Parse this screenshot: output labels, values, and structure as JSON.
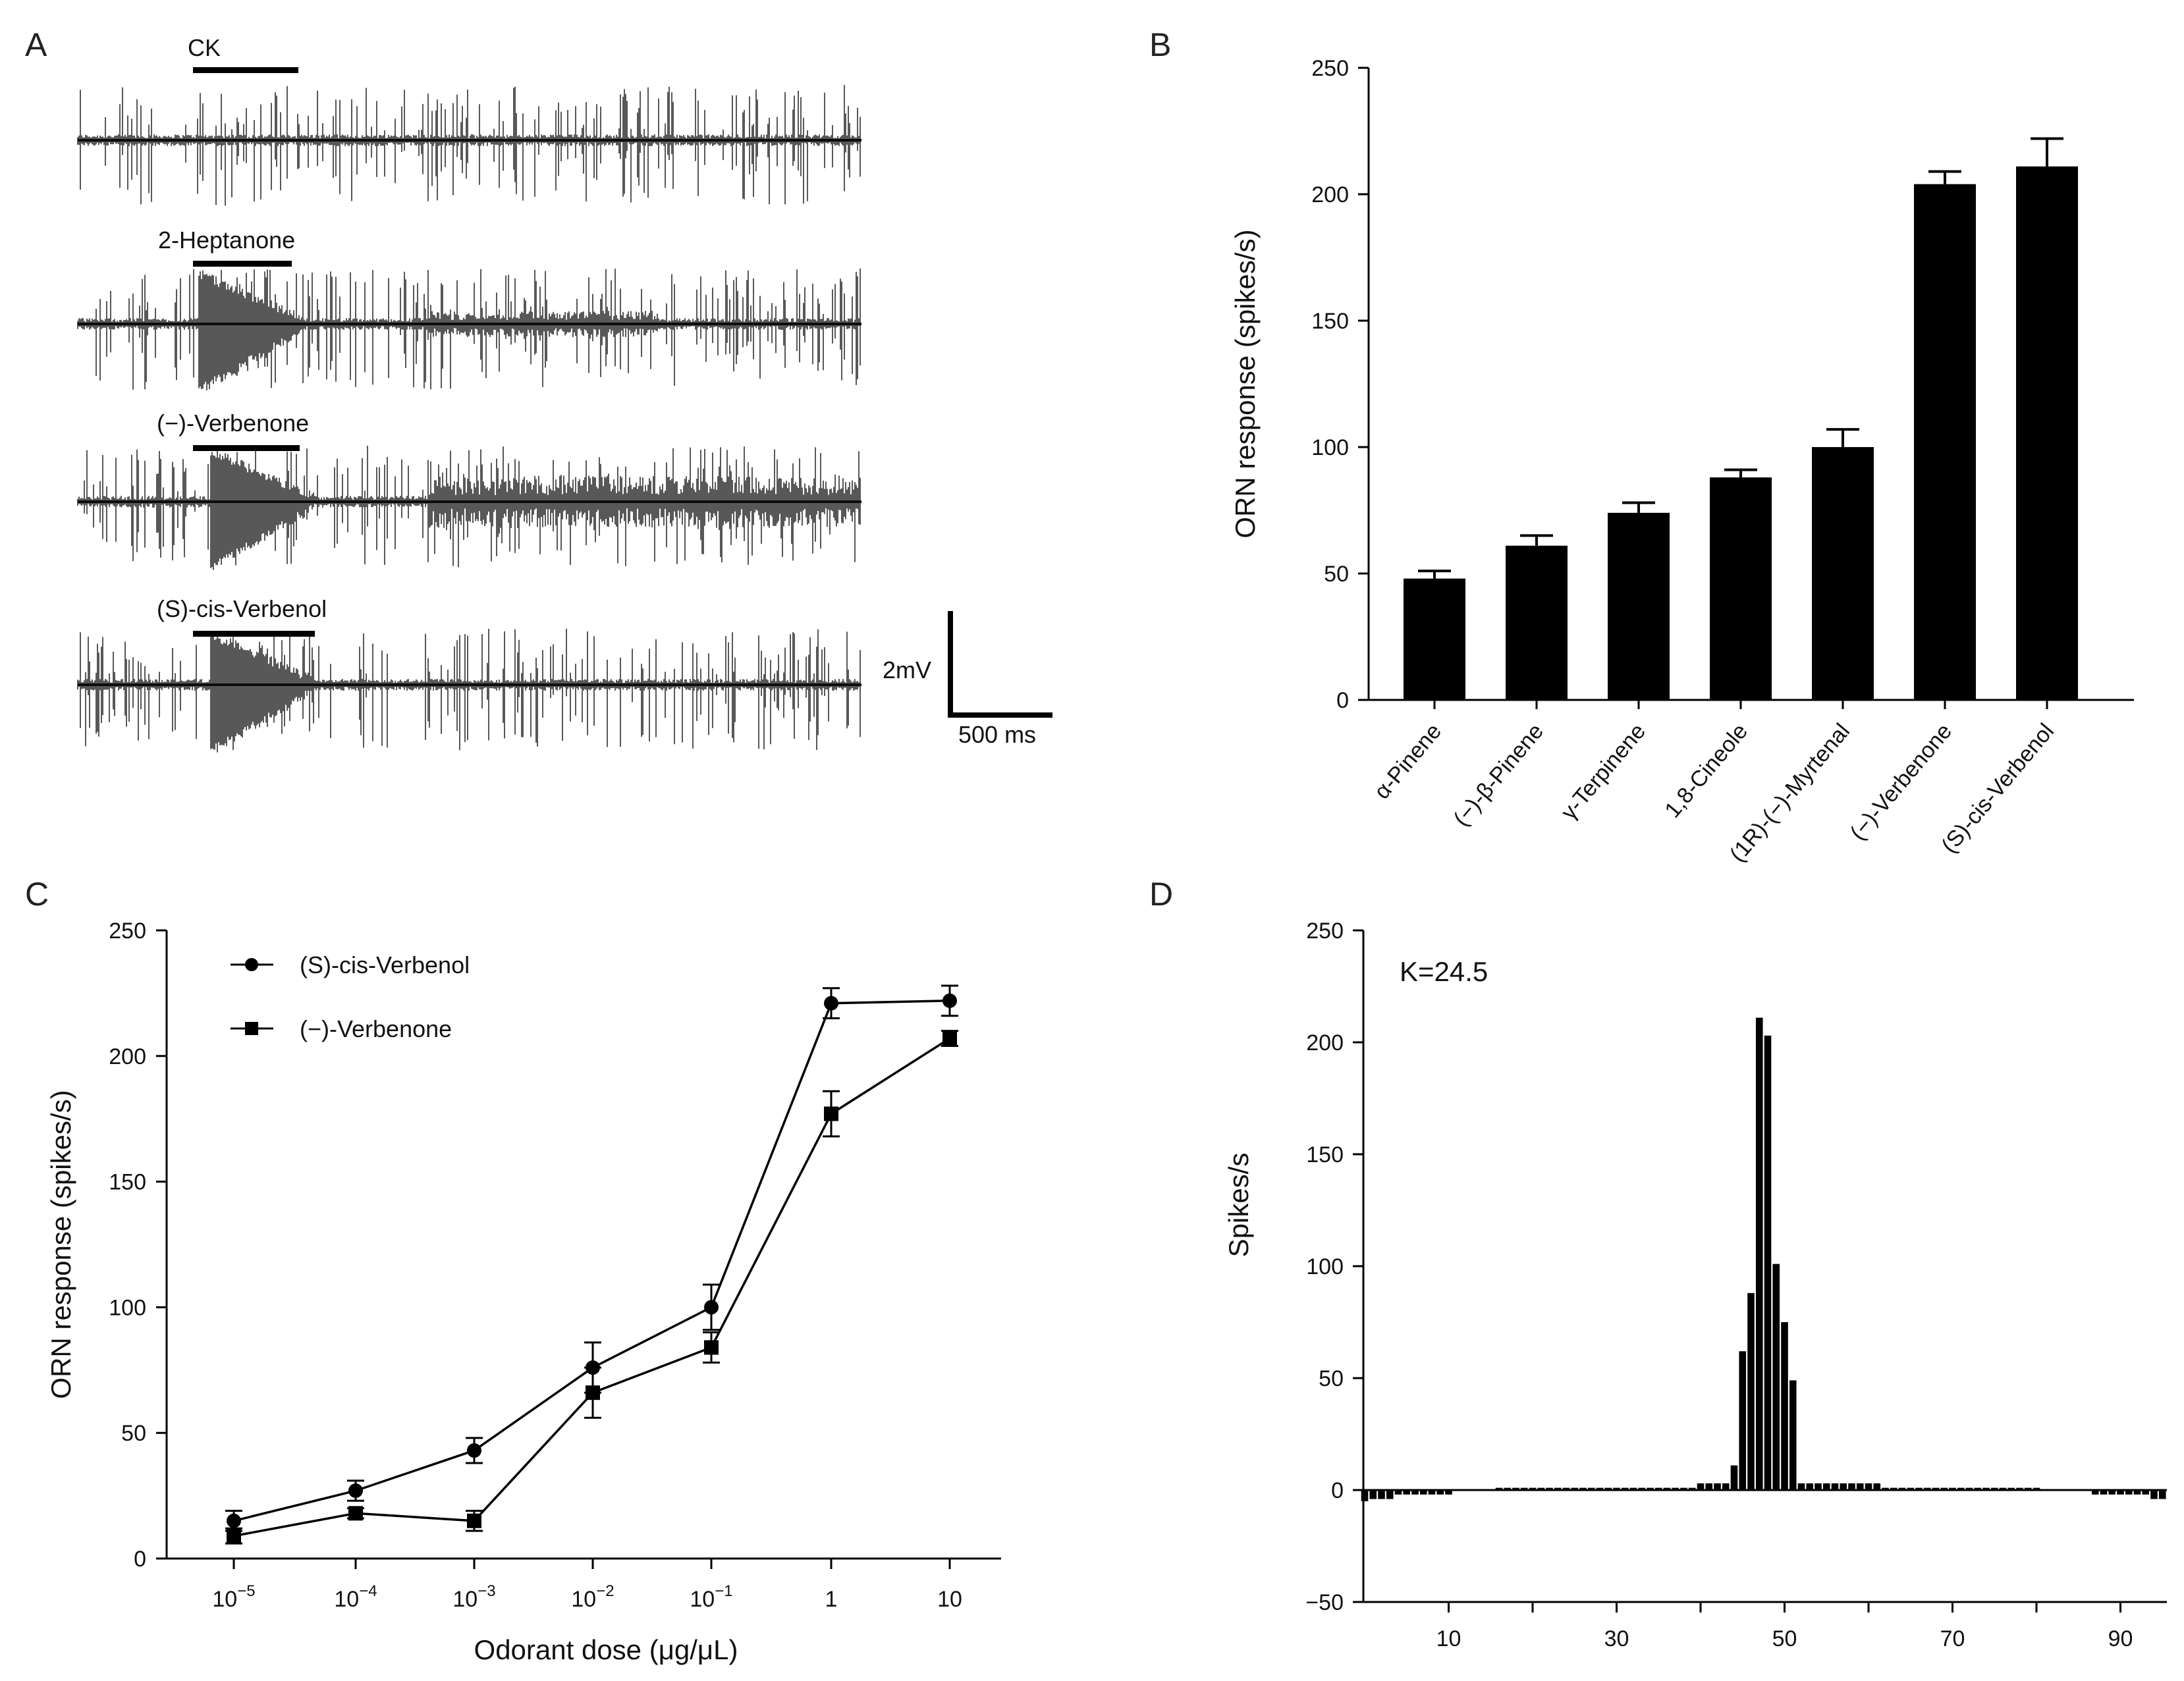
{
  "panel_labels": [
    "A",
    "B",
    "C",
    "D"
  ],
  "panelA": {
    "traces": [
      "CK",
      "2-Heptanone",
      "(−)-Verbenone",
      "(S)-cis-Verbenol"
    ],
    "scale_voltage": "2mV",
    "scale_time": "500 ms"
  },
  "chart_data": [
    {
      "panel": "B",
      "type": "bar",
      "ylabel": "ORN response (spikes/s)",
      "ylim": [
        0,
        250
      ],
      "yticks": [
        "0",
        "50",
        "100",
        "150",
        "200",
        "250"
      ],
      "categories": [
        "α-Pinene",
        "(−)-β-Pinene",
        "γ-Terpinene",
        "1,8-Cineole",
        "(1R)-(−)-Myrtenal",
        "(−)-Verbenone",
        "(S)-cis-Verbenol"
      ],
      "values": [
        48,
        61,
        74,
        88,
        100,
        204,
        211
      ],
      "errors": [
        3,
        4,
        4,
        3,
        7,
        5,
        11
      ]
    },
    {
      "panel": "C",
      "type": "line",
      "xlabel": "Odorant dose (μg/μL)",
      "ylabel": "ORN response (spikes/s)",
      "ylim": [
        0,
        250
      ],
      "yticks": [
        "0",
        "50",
        "100",
        "150",
        "200",
        "250"
      ],
      "x_log": true,
      "xtick_bases": [
        "10",
        "10",
        "10",
        "10",
        "10",
        "1",
        "10"
      ],
      "xtick_exps": [
        "−5",
        "−4",
        "−3",
        "−2",
        "−1",
        "",
        ""
      ],
      "x": [
        1e-05,
        0.0001,
        0.001,
        0.01,
        0.1,
        1,
        10
      ],
      "series": [
        {
          "name": "(S)-cis-Verbenol",
          "marker": "circle",
          "values": [
            15,
            27,
            43,
            76,
            100,
            221,
            222
          ],
          "errors": [
            4,
            4,
            5,
            10,
            9,
            6,
            6
          ]
        },
        {
          "name": "(−)-Verbenone",
          "marker": "square",
          "values": [
            9,
            18,
            15,
            66,
            84,
            177,
            207
          ],
          "errors": [
            3,
            2,
            4,
            10,
            6,
            9,
            3
          ]
        }
      ]
    },
    {
      "panel": "D",
      "type": "bar",
      "ylabel": "Spikes/s",
      "annotation": "K=24.5",
      "ylim": [
        -50,
        250
      ],
      "yticks": [
        "−50",
        "0",
        "50",
        "100",
        "150",
        "200",
        "250"
      ],
      "xticks": [
        "10",
        "30",
        "50",
        "70",
        "90"
      ],
      "x": [
        0,
        1,
        2,
        3,
        4,
        5,
        6,
        7,
        8,
        9,
        10,
        11,
        12,
        13,
        14,
        15,
        16,
        17,
        18,
        19,
        20,
        21,
        22,
        23,
        24,
        25,
        26,
        27,
        28,
        29,
        30,
        31,
        32,
        33,
        34,
        35,
        36,
        37,
        38,
        39,
        40,
        41,
        42,
        43,
        44,
        45,
        46,
        47,
        48,
        49,
        50,
        51,
        52,
        53,
        54,
        55,
        56,
        57,
        58,
        59,
        60,
        61,
        62,
        63,
        64,
        65,
        66,
        67,
        68,
        69,
        70,
        71,
        72,
        73,
        74,
        75,
        76,
        77,
        78,
        79,
        80,
        81,
        82,
        83,
        84,
        85,
        86,
        87,
        88,
        89,
        90,
        91,
        92,
        93,
        94,
        95
      ],
      "values": [
        -5,
        -4,
        -4,
        -4,
        -2,
        -2,
        -2,
        -2,
        -2,
        -2,
        -2,
        0,
        0,
        0,
        0,
        0,
        1,
        1,
        1,
        1,
        1,
        1,
        1,
        1,
        1,
        1,
        1,
        1,
        1,
        1,
        1,
        1,
        1,
        1,
        1,
        1,
        1,
        1,
        1,
        1,
        3,
        3,
        3,
        3,
        11,
        62,
        88,
        211,
        203,
        101,
        75,
        49,
        3,
        3,
        3,
        3,
        3,
        3,
        3,
        3,
        3,
        3,
        1,
        1,
        1,
        1,
        1,
        1,
        1,
        1,
        1,
        1,
        1,
        1,
        1,
        1,
        1,
        1,
        1,
        1,
        1,
        0,
        0,
        0,
        0,
        0,
        0,
        -2,
        -2,
        -2,
        -2,
        -2,
        -2,
        -2,
        -4,
        -4
      ]
    }
  ]
}
